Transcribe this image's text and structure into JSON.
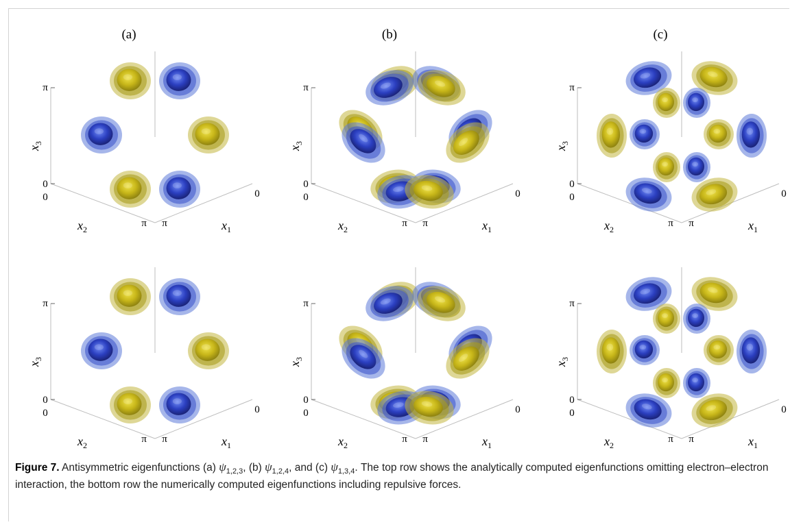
{
  "panels": [
    {
      "label": "(a)"
    },
    {
      "label": "(b)"
    },
    {
      "label": "(c)"
    }
  ],
  "axes": {
    "x1": "x",
    "x1_sub": "1",
    "x2": "x",
    "x2_sub": "2",
    "x3": "x",
    "x3_sub": "3",
    "tick_zero": "0",
    "tick_pi": "π"
  },
  "colors": {
    "yellow_lobe": "#b5a814",
    "blue_lobe": "#2b3fc0",
    "axis_line": "#bdbdbd"
  },
  "caption": {
    "figure_label": "Figure 7.",
    "text_1": " Antisymmetric eigenfunctions (a) ",
    "psi": "ψ",
    "sub_a": "1,2,3",
    "text_2": ", (b) ",
    "sub_b": "1,2,4",
    "text_3": ", and (c) ",
    "sub_c": "1,3,4",
    "text_4": ". The top row shows the analytically computed eigenfunctions omitting electron–electron interaction, the bottom row the numerically computed eigenfunctions including repulsive forces."
  }
}
